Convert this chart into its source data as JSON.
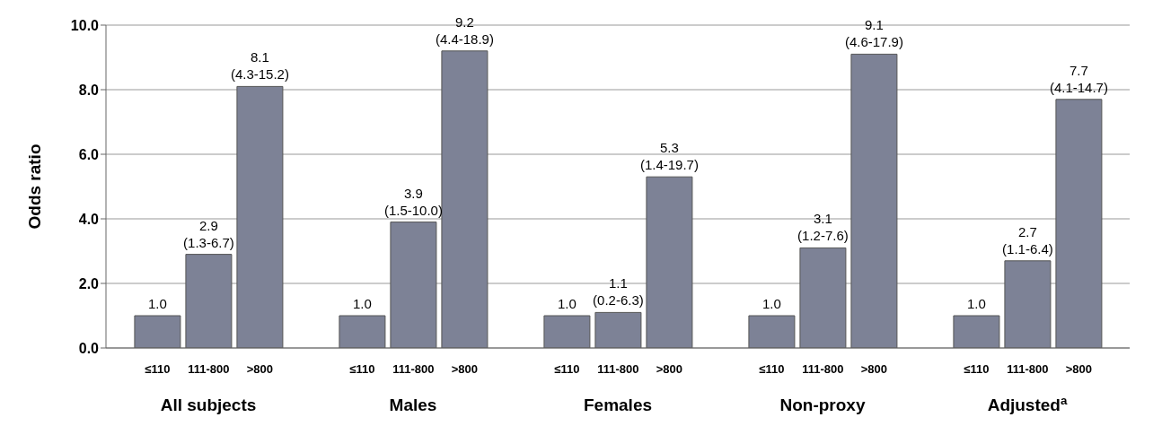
{
  "chart_data": {
    "type": "bar",
    "ylabel": "Odds ratio",
    "categories": [
      "All subjects",
      "Males",
      "Females",
      "Non-proxy",
      "Adjusted$^{a}$"
    ],
    "series": [
      {
        "name": "≤110",
        "color": "#7d8296",
        "values": [
          1.0,
          1.0,
          1.0,
          1.0,
          1.0
        ],
        "value_labels": [
          "1.0",
          "1.0",
          "1.0",
          "1.0",
          "1.0"
        ]
      },
      {
        "name": "111-800",
        "color": "#7d8296",
        "values": [
          2.9,
          3.9,
          1.1,
          3.1,
          2.7
        ],
        "value_labels": [
          "2.9 (1.3-6.7)",
          "3.9 (1.5-10.0)",
          "1.1 (0.2-6.3)",
          "3.1 (1.2-7.6)",
          "2.7 (1.1-6.4)"
        ]
      },
      {
        "name": ">800",
        "color": "#7d8296",
        "values": [
          8.1,
          9.2,
          5.3,
          9.1,
          7.7
        ],
        "value_labels": [
          "8.1 (4.3-15.2)",
          "9.2 (4.4-18.9)",
          "5.3 (1.4-19.7)",
          "9.1 (4.6-17.9)",
          "7.7 (4.1-14.7)"
        ]
      }
    ],
    "ylim": [
      0,
      10
    ],
    "yticks": [
      {
        "value": 0,
        "label": "0.0"
      },
      {
        "value": 2,
        "label": "2.0"
      },
      {
        "value": 4,
        "label": "4.0"
      },
      {
        "value": 6,
        "label": "6.0"
      },
      {
        "value": 8,
        "label": "8.0"
      },
      {
        "value": 10,
        "label": "10.0"
      }
    ],
    "grid": "y",
    "legend": false
  }
}
